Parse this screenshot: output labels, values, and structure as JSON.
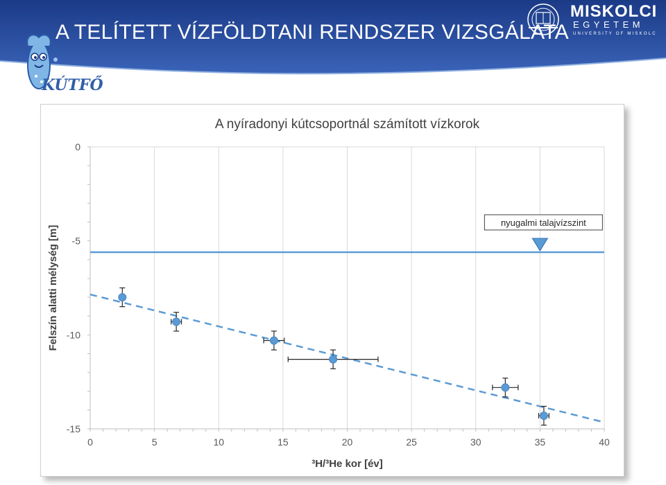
{
  "slide": {
    "title": "A TELÍTETT VÍZFÖLDTANI RENDSZER VIZSGÁLATA",
    "project_logo_text": "KÚTFŐ",
    "university": {
      "name": "MISKOLCI",
      "subtitle": "EGYETEM",
      "subtitle2": "UNIVERSITY OF MISKOLC"
    }
  },
  "colors": {
    "banner": "#2c4f9e",
    "banner_dark": "#1b3a86",
    "series": "#5b9bd5",
    "grid": "#d9d9d9",
    "axis_text": "#595959"
  },
  "icons": [
    "mascot-icon",
    "university-crest-icon"
  ],
  "chart_data": {
    "type": "scatter",
    "title": "A nyíradonyi kútcsoportnál számított vízkorok",
    "xlabel": "³H/³He kor [év]",
    "ylabel": "Felszín alatti mélység [m]",
    "xlim": [
      0,
      40
    ],
    "ylim": [
      -15,
      0
    ],
    "x_ticks": [
      0,
      5,
      10,
      15,
      20,
      25,
      30,
      35,
      40
    ],
    "y_ticks": [
      0,
      -5,
      -10,
      -15
    ],
    "grid": true,
    "points": [
      {
        "x": 2.5,
        "y": -8.0,
        "y_err": 0.5,
        "x_err": 0
      },
      {
        "x": 6.7,
        "y": -9.3,
        "y_err": 0.5,
        "x_err": 0.4
      },
      {
        "x": 14.3,
        "y": -10.3,
        "y_err": 0.5,
        "x_err": 0.8
      },
      {
        "x": 18.9,
        "y": -11.3,
        "y_err": 0.5,
        "x_err": 3.5
      },
      {
        "x": 32.3,
        "y": -12.8,
        "y_err": 0.5,
        "x_err": 1.0
      },
      {
        "x": 35.3,
        "y": -14.3,
        "y_err": 0.5,
        "x_err": 0.4
      }
    ],
    "trendline": {
      "style": "dashed",
      "x": [
        0,
        40
      ],
      "y": [
        -7.85,
        -14.65
      ]
    },
    "reference_line": {
      "y": -5.6,
      "label": "nyugalmi talajvízszint",
      "marker_x": 35
    }
  }
}
